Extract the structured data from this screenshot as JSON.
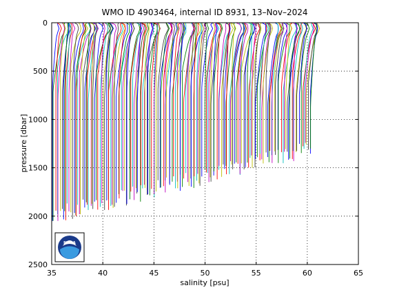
{
  "chart_data": {
    "type": "line",
    "title": "WMO ID 4903464, internal ID 8931, 13–Nov–2024",
    "xlabel": "salinity [psu]",
    "ylabel": "pressure [dbar]",
    "xlim": [
      35,
      65
    ],
    "ylim": [
      0,
      2500
    ],
    "y_inverted": true,
    "x_ticks": [
      35,
      40,
      45,
      50,
      55,
      60,
      65
    ],
    "y_ticks": [
      0,
      500,
      1000,
      1500,
      2000,
      2500
    ],
    "x_tick_labels": [
      "35",
      "40",
      "45",
      "50",
      "55",
      "60",
      "65"
    ],
    "y_tick_labels": [
      "0",
      "500",
      "1000",
      "1500",
      "2000",
      "2500"
    ],
    "grid": "dotted",
    "legend": "none",
    "profile_count": 170,
    "profile_offset_psu": 0.15,
    "series_colors": [
      "#0000ff",
      "#008000",
      "#ff0000",
      "#00bfbf",
      "#bf00bf",
      "#bfbf00",
      "#404040"
    ],
    "deep_turn_pressure_dbar": 700,
    "max_pressure_early_dbar": 2000,
    "max_pressure_late_dbar": 1300
  },
  "logo": {
    "text": "NOAA",
    "name": "noaa-logo"
  }
}
